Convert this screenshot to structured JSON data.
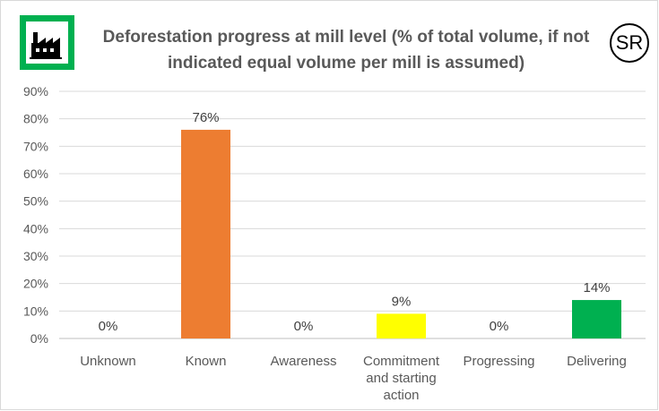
{
  "header": {
    "title_line1": "Deforestation progress at mill level (% of total volume, if not",
    "title_line2": "indicated equal volume per mill is assumed)",
    "logo_icon": "factory-icon",
    "badge_text": "SR"
  },
  "chart_data": {
    "type": "bar",
    "title": "Deforestation progress at mill level (% of total volume, if not indicated equal volume per mill is assumed)",
    "categories": [
      [
        "Unknown"
      ],
      [
        "Known"
      ],
      [
        "Awareness"
      ],
      [
        "Commitment",
        "and starting",
        "action"
      ],
      [
        "Progressing"
      ],
      [
        "Delivering"
      ]
    ],
    "values": [
      0,
      76,
      0,
      9,
      0,
      14
    ],
    "data_labels": [
      "0%",
      "76%",
      "0%",
      "9%",
      "0%",
      "14%"
    ],
    "colors": [
      "#ed7d31",
      "#ed7d31",
      "#ed7d31",
      "#ffff00",
      "#00b050",
      "#00b050"
    ],
    "yticks": [
      0,
      10,
      20,
      30,
      40,
      50,
      60,
      70,
      80,
      90
    ],
    "ytick_labels": [
      "0%",
      "10%",
      "20%",
      "30%",
      "40%",
      "50%",
      "60%",
      "70%",
      "80%",
      "90%"
    ],
    "ylim": [
      0,
      90
    ],
    "grid": true,
    "legend": false,
    "xlabel": "",
    "ylabel": ""
  }
}
